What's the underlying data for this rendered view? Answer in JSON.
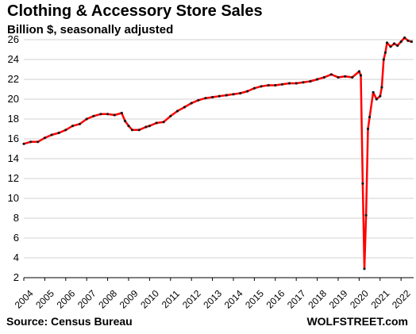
{
  "header": {
    "title": "Clothing & Accessory Store Sales",
    "subtitle": "Billion $, seasonally adjusted"
  },
  "footer": {
    "source": "Source: Census Bureau",
    "brand": "WOLFSTREET.com"
  },
  "colors": {
    "line": "#ff0000",
    "markers": "#1a1a1a",
    "grid": "#d0d0d0",
    "axis": "#000000"
  },
  "chart_data": {
    "type": "line",
    "title": "Clothing & Accessory Store Sales",
    "subtitle": "Billion $, seasonally adjusted",
    "xlabel": "",
    "ylabel": "",
    "ylim": [
      2,
      26
    ],
    "yticks": [
      2,
      4,
      6,
      8,
      10,
      12,
      14,
      16,
      18,
      20,
      22,
      24,
      26
    ],
    "xlim": [
      2004,
      2022.6
    ],
    "xticks": [
      "2004",
      "2005",
      "2006",
      "2007",
      "2008",
      "2009",
      "2010",
      "2011",
      "2012",
      "2013",
      "2014",
      "2015",
      "2016",
      "2017",
      "2018",
      "2019",
      "2020",
      "2021",
      "2022"
    ],
    "grid": "horizontal",
    "legend": "none",
    "series": [
      {
        "x": [
          2004.0,
          2004.33,
          2004.67,
          2005.0,
          2005.33,
          2005.67,
          2006.0,
          2006.33,
          2006.67,
          2007.0,
          2007.33,
          2007.67,
          2008.0,
          2008.33,
          2008.67,
          2008.83,
          2009.0,
          2009.17,
          2009.5,
          2009.83,
          2010.0,
          2010.33,
          2010.67,
          2011.0,
          2011.33,
          2011.67,
          2012.0,
          2012.33,
          2012.67,
          2013.0,
          2013.33,
          2013.67,
          2014.0,
          2014.33,
          2014.67,
          2015.0,
          2015.33,
          2015.67,
          2016.0,
          2016.33,
          2016.67,
          2017.0,
          2017.33,
          2017.67,
          2018.0,
          2018.33,
          2018.67,
          2019.0,
          2019.33,
          2019.67,
          2020.0,
          2020.08,
          2020.17,
          2020.25,
          2020.33,
          2020.42,
          2020.5,
          2020.67,
          2020.83,
          2021.0,
          2021.08,
          2021.17,
          2021.25,
          2021.33,
          2021.5,
          2021.67,
          2021.83,
          2022.0,
          2022.17,
          2022.33,
          2022.5
        ],
        "values": [
          15.5,
          15.7,
          15.7,
          16.1,
          16.4,
          16.6,
          16.9,
          17.3,
          17.5,
          18.0,
          18.3,
          18.5,
          18.5,
          18.4,
          18.6,
          17.8,
          17.3,
          16.9,
          16.9,
          17.2,
          17.3,
          17.6,
          17.7,
          18.3,
          18.8,
          19.2,
          19.6,
          19.9,
          20.1,
          20.2,
          20.3,
          20.4,
          20.5,
          20.6,
          20.8,
          21.1,
          21.3,
          21.4,
          21.4,
          21.5,
          21.6,
          21.6,
          21.7,
          21.8,
          22.0,
          22.2,
          22.5,
          22.2,
          22.3,
          22.2,
          22.8,
          22.4,
          11.5,
          2.9,
          8.3,
          17.0,
          18.2,
          20.7,
          20.0,
          20.3,
          21.2,
          24.0,
          24.7,
          25.7,
          25.3,
          25.6,
          25.4,
          25.8,
          26.2,
          25.9,
          25.8
        ]
      }
    ]
  }
}
